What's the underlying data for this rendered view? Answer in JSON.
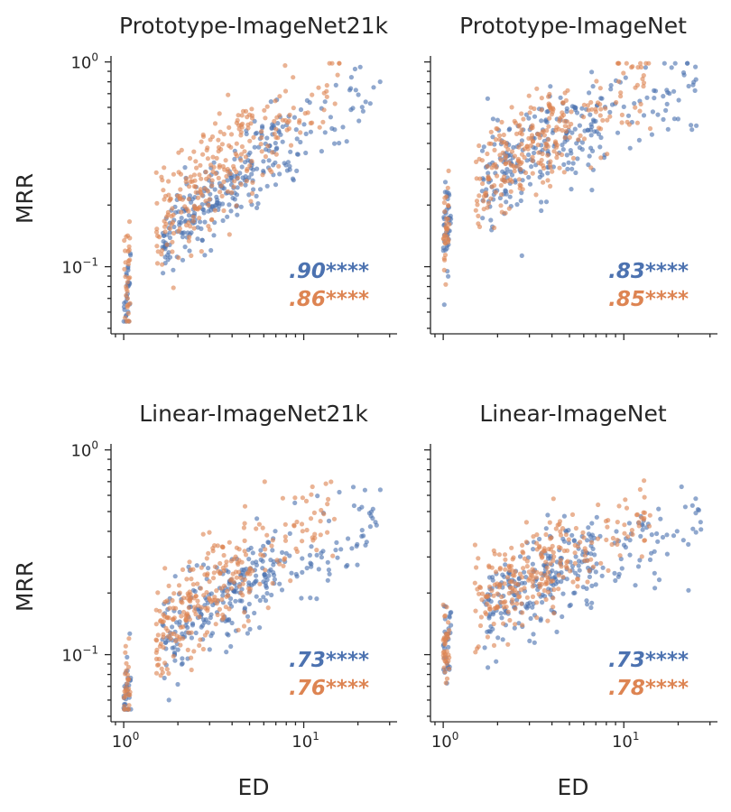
{
  "colors": {
    "blue": "#4c72b0",
    "orange": "#dd8452",
    "axis": "#262626"
  },
  "chart_data": {
    "type": "scatter",
    "xlabel": "ED",
    "ylabel": "MRR",
    "x_scale": "log",
    "y_scale": "log",
    "xlim": [
      0.85,
      33
    ],
    "ylim": [
      0.047,
      1.07
    ],
    "x_ticks": [
      {
        "base": "10",
        "exp": "0",
        "value": 1
      },
      {
        "base": "10",
        "exp": "1",
        "value": 10
      }
    ],
    "y_ticks": [
      {
        "base": "10",
        "exp": "0",
        "value": 1
      },
      {
        "base": "10",
        "exp": "−1",
        "value": 0.1
      }
    ],
    "legend": "none",
    "grid": false,
    "panels": [
      {
        "title": "Prototype-ImageNet21k",
        "corr_blue": ".90****",
        "corr_orange": ".86****",
        "series": [
          {
            "color": "blue",
            "x_range": [
              1,
              27
            ],
            "y_start": 0.06,
            "y_end": 0.7,
            "count": 320,
            "spread": 0.11
          },
          {
            "color": "orange",
            "x_range": [
              1,
              16
            ],
            "y_start": 0.07,
            "y_end": 0.75,
            "count": 300,
            "spread": 0.13
          }
        ]
      },
      {
        "title": "Prototype-ImageNet",
        "corr_blue": ".83****",
        "corr_orange": ".85****",
        "series": [
          {
            "color": "blue",
            "x_range": [
              1,
              27
            ],
            "y_start": 0.14,
            "y_end": 0.8,
            "count": 320,
            "spread": 0.12
          },
          {
            "color": "orange",
            "x_range": [
              1,
              14
            ],
            "y_start": 0.14,
            "y_end": 0.78,
            "count": 300,
            "spread": 0.12
          }
        ]
      },
      {
        "title": "Linear-ImageNet21k",
        "corr_blue": ".73****",
        "corr_orange": ".76****",
        "series": [
          {
            "color": "blue",
            "x_range": [
              1,
              27
            ],
            "y_start": 0.055,
            "y_end": 0.48,
            "count": 320,
            "spread": 0.11
          },
          {
            "color": "orange",
            "x_range": [
              1,
              15
            ],
            "y_start": 0.06,
            "y_end": 0.5,
            "count": 300,
            "spread": 0.12
          }
        ]
      },
      {
        "title": "Linear-ImageNet",
        "corr_blue": ".73****",
        "corr_orange": ".78****",
        "series": [
          {
            "color": "blue",
            "x_range": [
              1,
              27
            ],
            "y_start": 0.1,
            "y_end": 0.45,
            "count": 320,
            "spread": 0.11
          },
          {
            "color": "orange",
            "x_range": [
              1,
              14
            ],
            "y_start": 0.1,
            "y_end": 0.46,
            "count": 300,
            "spread": 0.11
          }
        ]
      }
    ]
  }
}
